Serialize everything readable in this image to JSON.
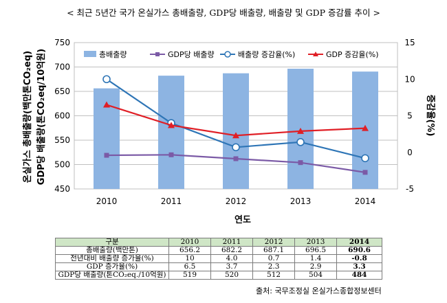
{
  "title": "< 최근 5년간 국가 온실가스 총배출량, GDP당 배출량, 배출량 및 GDP 증감률 추이 >",
  "chart_data": {
    "type": "bar",
    "categories": [
      "2010",
      "2011",
      "2012",
      "2013",
      "2014"
    ],
    "xlabel": "연도",
    "ylabel_left_1": "온실가스 총배출량(백만톤CO₂eq)",
    "ylabel_left_2": "GDP당 배출량(톤CO₂eq/10억원)",
    "ylabel_right": "증감율(%)",
    "ylim_left": [
      450,
      750
    ],
    "yticks_left": [
      "450",
      "500",
      "550",
      "600",
      "650",
      "700",
      "750"
    ],
    "ylim_right": [
      -5,
      15
    ],
    "yticks_right": [
      "-5",
      "0",
      "5",
      "10",
      "15"
    ],
    "grid": true,
    "legend_position": "top",
    "series": [
      {
        "name": "총배출량",
        "type": "bar",
        "axis": "left",
        "color": "#8db4e2",
        "values": [
          656.2,
          682.2,
          687.1,
          696.5,
          690.6
        ]
      },
      {
        "name": "GDP당 배출량",
        "type": "line",
        "axis": "left",
        "color": "#7b5aa6",
        "marker": "square",
        "values": [
          519,
          520,
          512,
          504,
          484
        ]
      },
      {
        "name": "배출량 증감율(%)",
        "type": "line",
        "axis": "right",
        "color": "#2e75b6",
        "marker": "open-circle",
        "values": [
          10.0,
          4.0,
          0.7,
          1.4,
          -0.8
        ]
      },
      {
        "name": "GDP 증감율(%)",
        "type": "line",
        "axis": "right",
        "color": "#e01f26",
        "marker": "triangle",
        "values": [
          6.5,
          3.7,
          2.3,
          2.9,
          3.3
        ]
      }
    ]
  },
  "table": {
    "header": [
      "구분",
      "2010",
      "2011",
      "2012",
      "2013",
      "2014"
    ],
    "rows": [
      [
        "총배출량(백만톤)",
        "656.2",
        "682.2",
        "687.1",
        "696.5",
        "690.6"
      ],
      [
        "전년대비 배출량 증가율(%)",
        "10",
        "4.0",
        "0.7",
        "1.4",
        "-0.8"
      ],
      [
        "GDP 증가율(%)",
        "6.5",
        "3.7",
        "2.3",
        "2.9",
        "3.3"
      ],
      [
        "GDP당 배출량(톤CO₂eq./10억원)",
        "519",
        "520",
        "512",
        "504",
        "484"
      ]
    ]
  },
  "source": "출처: 국무조정실 온실가스종합정보센터"
}
